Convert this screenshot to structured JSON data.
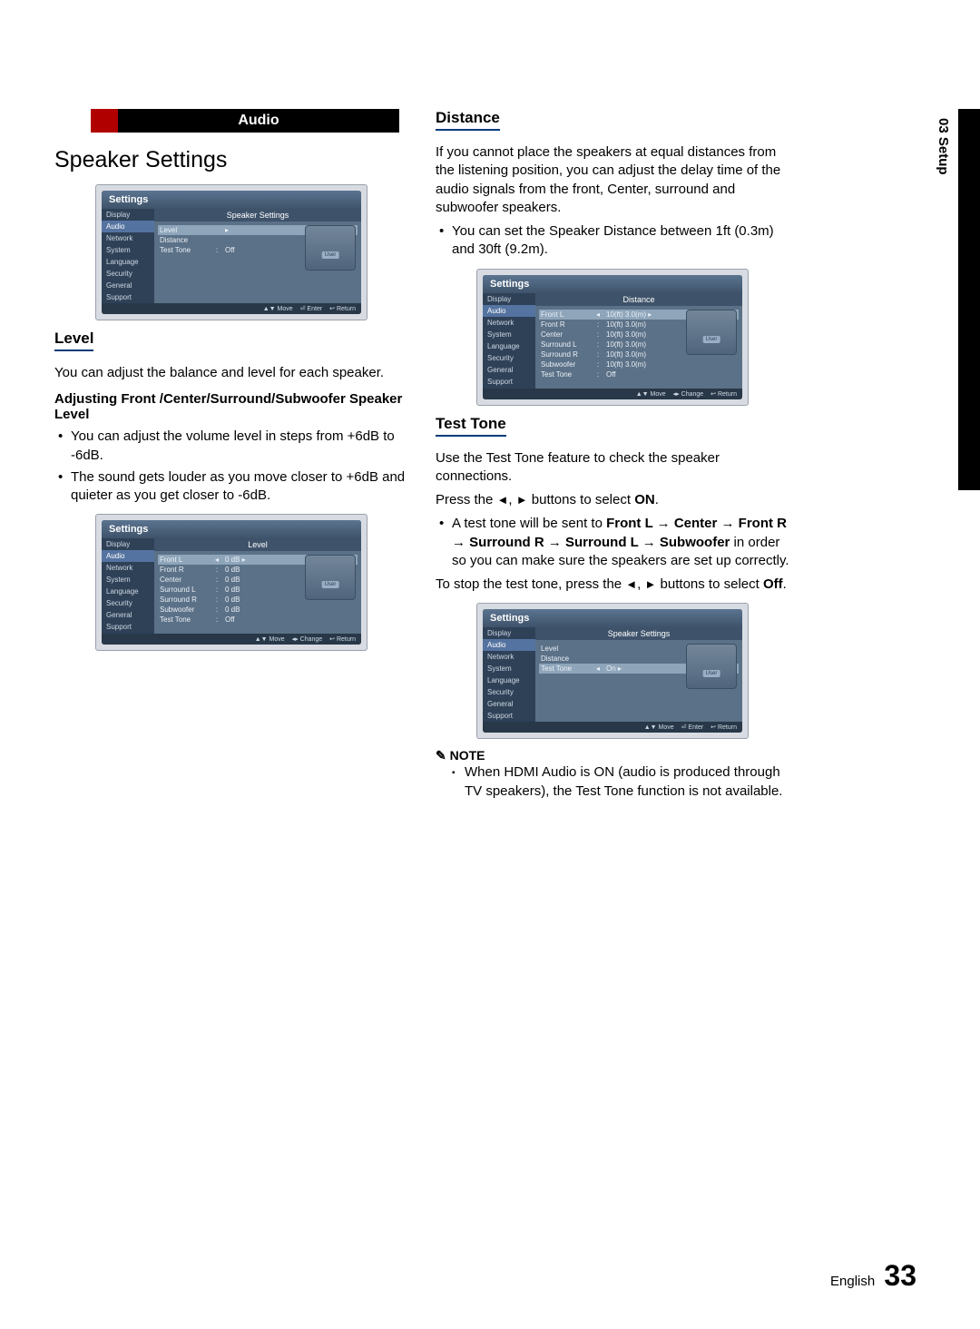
{
  "sideTab": "03  Setup",
  "audioBanner": "Audio",
  "heading": "Speaker Settings",
  "level": {
    "title": "Level",
    "intro": "You can adjust the balance and level for each speaker.",
    "subhead": "Adjusting Front /Center/Surround/Subwoofer Speaker Level",
    "b1": "You can adjust the volume level in steps from +6dB to -6dB.",
    "b2": "The sound gets louder as you move closer to +6dB and quieter as you get closer to -6dB."
  },
  "distance": {
    "title": "Distance",
    "intro": "If you cannot place the speakers at equal distances from the listening position, you can adjust the delay time of the audio signals from the front, Center, surround and subwoofer speakers.",
    "b1": "You can set the Speaker Distance between 1ft (0.3m) and 30ft (9.2m)."
  },
  "testtone": {
    "title": "Test Tone",
    "intro": "Use the Test Tone feature to check the speaker connections.",
    "press1": "Press the ",
    "press2": " buttons to select ",
    "pressOn": "ON",
    "pressDot": ".",
    "chainPre": "A test tone will be sent to ",
    "chain": "Front L → Center → Front R → Surround R → Surround L → Subwoofer",
    "chainPost": " in order so you can make sure the speakers are set up correctly.",
    "stop1": "To stop the test tone, press the ",
    "stop2": " buttons to select ",
    "stopOff": "Off",
    "stopDot": "."
  },
  "note": {
    "head": "NOTE",
    "body": "When HDMI Audio is ON (audio is produced through TV speakers), the Test Tone function is not available."
  },
  "menu": {
    "settings": "Settings",
    "display": "Display",
    "audio": "Audio",
    "network": "Network",
    "system": "System",
    "language": "Language",
    "security": "Security",
    "general": "General",
    "support": "Support"
  },
  "panelA": {
    "title": "Speaker Settings",
    "rows": [
      {
        "name": "Level",
        "colon": "",
        "val": "▸"
      },
      {
        "name": "Distance",
        "colon": "",
        "val": ""
      },
      {
        "name": "Test Tone",
        "colon": ":",
        "val": "Off"
      }
    ],
    "hints": [
      "▲▼ Move",
      "⏎ Enter",
      "↩ Return"
    ]
  },
  "panelB": {
    "title": "Level",
    "rows": [
      {
        "name": "Front L",
        "colon": "◂",
        "val": "0 dB   ▸"
      },
      {
        "name": "Front R",
        "colon": ":",
        "val": "0 dB"
      },
      {
        "name": "Center",
        "colon": ":",
        "val": "0 dB"
      },
      {
        "name": "Surround L",
        "colon": ":",
        "val": "0 dB"
      },
      {
        "name": "Surround R",
        "colon": ":",
        "val": "0 dB"
      },
      {
        "name": "Subwoofer",
        "colon": ":",
        "val": "0 dB"
      },
      {
        "name": "Test Tone",
        "colon": ":",
        "val": "Off"
      }
    ],
    "hints": [
      "▲▼ Move",
      "◂▸ Change",
      "↩ Return"
    ]
  },
  "panelC": {
    "title": "Distance",
    "rows": [
      {
        "name": "Front L",
        "colon": "◂",
        "val": "10(ft) 3.0(m)  ▸"
      },
      {
        "name": "Front R",
        "colon": ":",
        "val": "10(ft) 3.0(m)"
      },
      {
        "name": "Center",
        "colon": ":",
        "val": "10(ft) 3.0(m)"
      },
      {
        "name": "Surround L",
        "colon": ":",
        "val": "10(ft) 3.0(m)"
      },
      {
        "name": "Surround R",
        "colon": ":",
        "val": "10(ft) 3.0(m)"
      },
      {
        "name": "Subwoofer",
        "colon": ":",
        "val": "10(ft) 3.0(m)"
      },
      {
        "name": "Test Tone",
        "colon": ":",
        "val": "Off"
      }
    ],
    "hints": [
      "▲▼ Move",
      "◂▸ Change",
      "↩ Return"
    ]
  },
  "panelD": {
    "title": "Speaker Settings",
    "rows": [
      {
        "name": "Level",
        "colon": "",
        "val": ""
      },
      {
        "name": "Distance",
        "colon": "",
        "val": ""
      },
      {
        "name": "Test Tone",
        "colon": "◂",
        "val": "On   ▸"
      }
    ],
    "hints": [
      "▲▼ Move",
      "⏎ Enter",
      "↩ Return"
    ]
  },
  "footer": {
    "lang": "English",
    "page": "33"
  },
  "triangles": {
    "left": "◄",
    "right": "►",
    "comma": ", "
  }
}
